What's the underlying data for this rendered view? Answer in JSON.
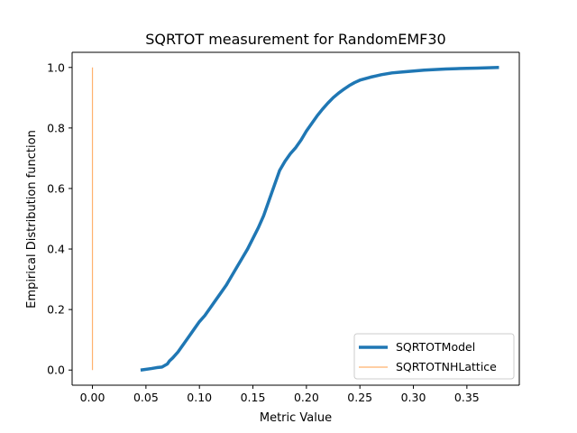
{
  "chart_data": {
    "type": "line",
    "title": "SQRTOT measurement for RandomEMF30",
    "xlabel": "Metric Value",
    "ylabel": "Empirical Distribution function",
    "xlim": [
      -0.019,
      0.399
    ],
    "ylim": [
      -0.05,
      1.05
    ],
    "x_ticks": [
      0.0,
      0.05,
      0.1,
      0.15,
      0.2,
      0.25,
      0.3,
      0.35
    ],
    "x_tick_labels": [
      "0.00",
      "0.05",
      "0.10",
      "0.15",
      "0.20",
      "0.25",
      "0.30",
      "0.35"
    ],
    "y_ticks": [
      0.0,
      0.2,
      0.4,
      0.6,
      0.8,
      1.0
    ],
    "y_tick_labels": [
      "0.0",
      "0.2",
      "0.4",
      "0.6",
      "0.8",
      "1.0"
    ],
    "grid": false,
    "legend_position": "lower-right",
    "series": [
      {
        "name": "SQRTOTModel",
        "color": "#1f77b4",
        "x": [
          0.045,
          0.055,
          0.06,
          0.065,
          0.07,
          0.072,
          0.075,
          0.08,
          0.085,
          0.09,
          0.095,
          0.1,
          0.105,
          0.11,
          0.115,
          0.12,
          0.125,
          0.13,
          0.135,
          0.14,
          0.145,
          0.15,
          0.155,
          0.16,
          0.165,
          0.17,
          0.175,
          0.18,
          0.185,
          0.19,
          0.195,
          0.2,
          0.205,
          0.21,
          0.215,
          0.22,
          0.225,
          0.23,
          0.235,
          0.24,
          0.245,
          0.25,
          0.255,
          0.26,
          0.265,
          0.27,
          0.275,
          0.28,
          0.29,
          0.3,
          0.31,
          0.32,
          0.33,
          0.34,
          0.35,
          0.36,
          0.37,
          0.38
        ],
        "y": [
          0.0,
          0.005,
          0.008,
          0.01,
          0.02,
          0.03,
          0.04,
          0.06,
          0.085,
          0.11,
          0.135,
          0.16,
          0.18,
          0.205,
          0.23,
          0.255,
          0.28,
          0.31,
          0.34,
          0.37,
          0.4,
          0.435,
          0.47,
          0.51,
          0.56,
          0.61,
          0.66,
          0.69,
          0.715,
          0.735,
          0.76,
          0.79,
          0.815,
          0.84,
          0.862,
          0.882,
          0.9,
          0.915,
          0.928,
          0.94,
          0.95,
          0.958,
          0.963,
          0.968,
          0.972,
          0.976,
          0.979,
          0.982,
          0.985,
          0.988,
          0.991,
          0.993,
          0.995,
          0.996,
          0.997,
          0.998,
          0.999,
          1.0
        ],
        "line_width": "thick"
      },
      {
        "name": "SQRTOTNHLattice",
        "color": "#ff7f0e",
        "x": [
          0.0,
          0.0
        ],
        "y": [
          0.0,
          1.0
        ],
        "line_width": "thin",
        "opacity": 0.6
      }
    ]
  }
}
